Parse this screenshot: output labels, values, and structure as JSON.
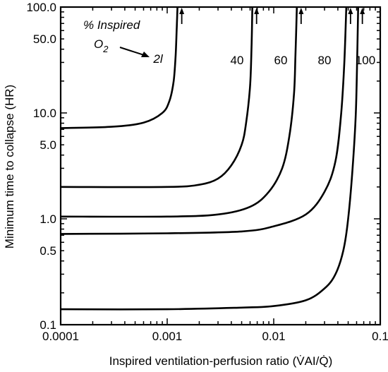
{
  "chart_data": {
    "type": "line",
    "xlabel": "Inspired ventilation-perfusion ratio (V̇AI/Q̇)",
    "ylabel": "Minimum time to collapse (HR)",
    "xscale": "log",
    "yscale": "log",
    "xlim": [
      0.0001,
      0.1
    ],
    "ylim": [
      0.1,
      100
    ],
    "x_ticks": [
      "0.0001",
      "0.001",
      "0.01",
      "0.1"
    ],
    "y_ticks": [
      "0.1",
      "0.5",
      "1.0",
      "5.0",
      "10.0",
      "50.0",
      "100.0"
    ],
    "grid": false,
    "annotation": {
      "line1": "% Inspired",
      "line2": "O",
      "subscript": "2"
    },
    "series": [
      {
        "name": "21",
        "asymptote_x": 0.00125,
        "x": [
          0.0001,
          0.0003,
          0.0006,
          0.0009,
          0.00105,
          0.00115,
          0.0012,
          0.00123,
          0.00125
        ],
        "y": [
          7.2,
          7.4,
          8.1,
          10.0,
          13.0,
          20.0,
          35.0,
          65.0,
          100.0
        ]
      },
      {
        "name": "40",
        "asymptote_x": 0.0063,
        "x": [
          0.0001,
          0.001,
          0.002,
          0.003,
          0.004,
          0.005,
          0.0055,
          0.006,
          0.0062,
          0.0063
        ],
        "y": [
          2.0,
          2.0,
          2.1,
          2.4,
          3.2,
          5.0,
          8.0,
          18.0,
          45.0,
          100.0
        ]
      },
      {
        "name": "60",
        "asymptote_x": 0.0165,
        "x": [
          0.0001,
          0.001,
          0.003,
          0.006,
          0.009,
          0.012,
          0.014,
          0.0155,
          0.016,
          0.0165
        ],
        "y": [
          1.05,
          1.05,
          1.1,
          1.3,
          1.8,
          3.0,
          6.0,
          15.0,
          35.0,
          100.0
        ]
      },
      {
        "name": "80",
        "asymptote_x": 0.048,
        "x": [
          0.0001,
          0.001,
          0.005,
          0.01,
          0.02,
          0.03,
          0.038,
          0.043,
          0.046,
          0.048
        ],
        "y": [
          0.72,
          0.73,
          0.76,
          0.85,
          1.1,
          1.8,
          3.5,
          10.0,
          30.0,
          100.0
        ]
      },
      {
        "name": "100",
        "asymptote_x": 0.062,
        "x": [
          0.0001,
          0.001,
          0.005,
          0.01,
          0.02,
          0.03,
          0.038,
          0.045,
          0.05,
          0.055,
          0.059,
          0.061,
          0.062
        ],
        "y": [
          0.14,
          0.14,
          0.145,
          0.15,
          0.17,
          0.22,
          0.3,
          0.5,
          1.0,
          3.0,
          10.0,
          40.0,
          100.0
        ]
      }
    ],
    "curve_labels": [
      "2l",
      "40",
      "60",
      "80",
      "100"
    ]
  }
}
